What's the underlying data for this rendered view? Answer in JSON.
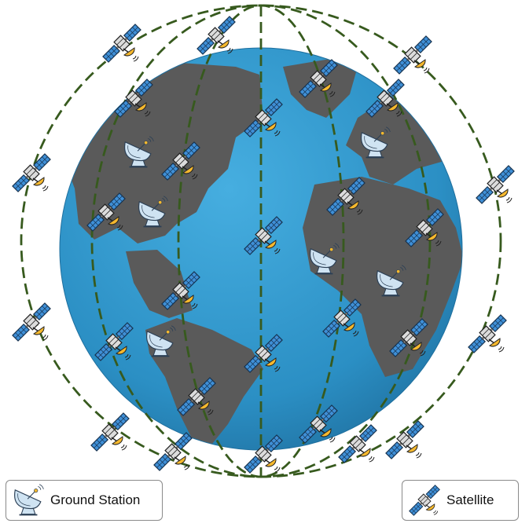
{
  "legend": {
    "ground_station_label": "Ground Station",
    "satellite_label": "Satellite"
  },
  "icons": {
    "ground_station": "satellite-dish-icon",
    "satellite": "satellite-icon"
  },
  "colors": {
    "ocean": "#2b8fc4",
    "land": "#5a5a5a",
    "orbit": "#375a1e",
    "panel": "#3f8fd6",
    "dish": "#cfe3f2",
    "antenna_tip": "#f5b82e"
  }
}
